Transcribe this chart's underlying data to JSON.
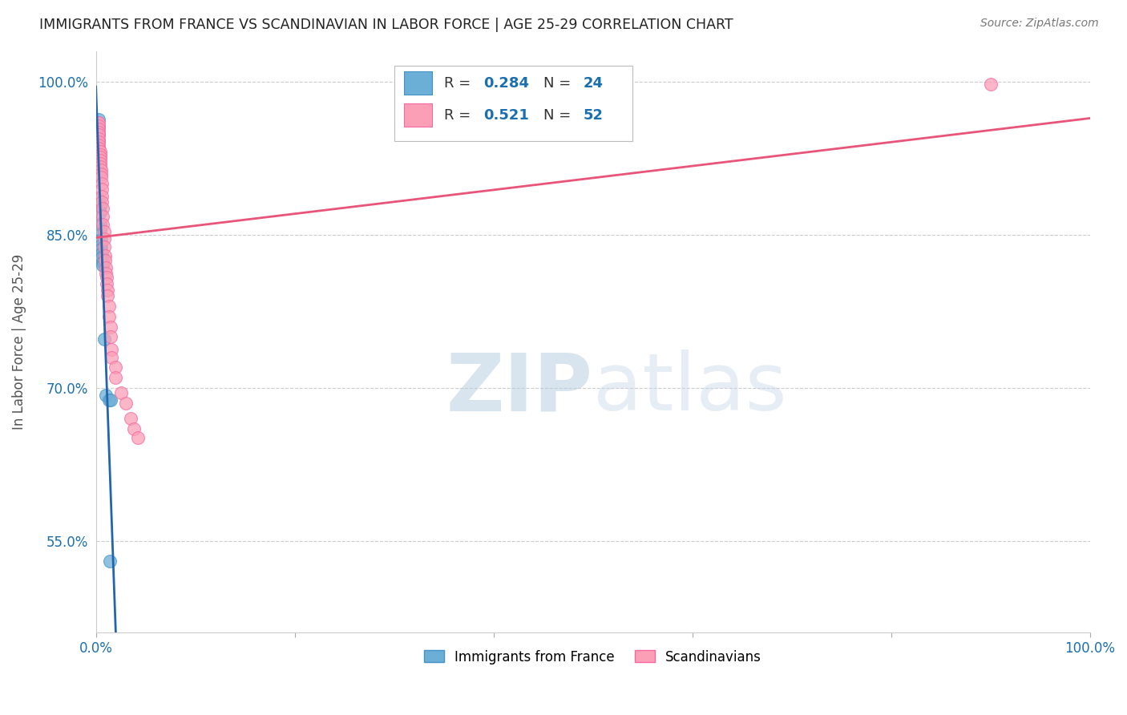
{
  "title": "IMMIGRANTS FROM FRANCE VS SCANDINAVIAN IN LABOR FORCE | AGE 25-29 CORRELATION CHART",
  "source": "Source: ZipAtlas.com",
  "ylabel": "In Labor Force | Age 25-29",
  "xlim": [
    0.0,
    100.0
  ],
  "ylim": [
    46.0,
    103.0
  ],
  "yticks": [
    55.0,
    70.0,
    85.0,
    100.0
  ],
  "ytick_labels": [
    "55.0%",
    "70.0%",
    "85.0%",
    "100.0%"
  ],
  "xticks": [
    0.0,
    20.0,
    40.0,
    60.0,
    80.0,
    100.0
  ],
  "xtick_labels": [
    "0.0%",
    "",
    "",
    "",
    "",
    "100.0%"
  ],
  "france_color": "#6baed6",
  "france_edge_color": "#4292c6",
  "scandinavian_color": "#fa9fb5",
  "scandinavian_edge_color": "#f768a1",
  "france_R": 0.284,
  "france_N": 24,
  "scandinavian_R": 0.521,
  "scandinavian_N": 52,
  "watermark_zip": "ZIP",
  "watermark_atlas": "atlas",
  "legend_france": "Immigrants from France",
  "legend_scandinavian": "Scandinavians",
  "france_x": [
    0.3,
    0.3,
    0.3,
    0.3,
    0.3,
    0.3,
    0.3,
    0.3,
    0.4,
    0.4,
    0.4,
    0.4,
    0.5,
    0.5,
    0.5,
    0.6,
    0.6,
    0.7,
    0.7,
    0.8,
    1.0,
    1.3,
    1.4,
    1.5
  ],
  "france_y": [
    96.3,
    95.6,
    94.8,
    94.2,
    93.5,
    92.8,
    92.0,
    88.5,
    87.8,
    87.2,
    86.0,
    85.5,
    84.5,
    84.0,
    83.6,
    83.2,
    82.8,
    82.3,
    82.0,
    74.8,
    69.3,
    68.8,
    53.0,
    68.8
  ],
  "scandinavian_x": [
    0.2,
    0.2,
    0.3,
    0.3,
    0.3,
    0.3,
    0.3,
    0.3,
    0.3,
    0.3,
    0.3,
    0.4,
    0.4,
    0.4,
    0.4,
    0.4,
    0.4,
    0.5,
    0.5,
    0.5,
    0.6,
    0.6,
    0.6,
    0.6,
    0.7,
    0.7,
    0.7,
    0.8,
    0.8,
    0.8,
    0.9,
    0.9,
    1.0,
    1.0,
    1.1,
    1.1,
    1.2,
    1.2,
    1.3,
    1.3,
    1.5,
    1.5,
    1.6,
    1.6,
    2.0,
    2.0,
    2.5,
    3.0,
    3.5,
    3.8,
    4.2,
    90.0
  ],
  "scandinavian_y": [
    96.0,
    95.6,
    96.0,
    95.7,
    95.4,
    95.1,
    94.8,
    94.4,
    94.1,
    93.8,
    93.5,
    93.2,
    92.9,
    92.6,
    92.3,
    92.0,
    91.7,
    91.4,
    91.0,
    90.7,
    90.0,
    89.5,
    88.8,
    88.2,
    87.6,
    86.8,
    86.0,
    85.3,
    84.6,
    83.8,
    83.0,
    82.5,
    81.8,
    81.2,
    80.8,
    80.2,
    79.6,
    79.0,
    78.0,
    77.0,
    76.0,
    75.0,
    73.8,
    73.0,
    72.0,
    71.0,
    69.5,
    68.5,
    67.0,
    66.0,
    65.1,
    99.8
  ],
  "background_color": "#ffffff",
  "grid_color": "#cccccc",
  "title_color": "#222222",
  "axis_label_color": "#555555",
  "tick_color": "#1a6faf",
  "legend_r_color": "#333333",
  "legend_n_color": "#1a6faf",
  "france_line_color": "#2166ac",
  "scandinavian_line_color": "#e8547a"
}
